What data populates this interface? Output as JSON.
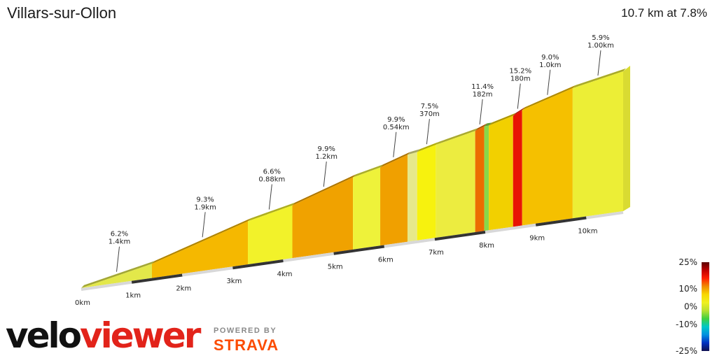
{
  "title": "Villars-sur-Ollon",
  "summary": "10.7 km at 7.8%",
  "chart_data": {
    "type": "area",
    "description": "3D gradient profile",
    "x_axis_labels": [
      "0km",
      "1km",
      "2km",
      "3km",
      "4km",
      "5km",
      "6km",
      "7km",
      "8km",
      "9km",
      "10km"
    ],
    "segments": [
      {
        "start_km": 0.0,
        "end_km": 1.4,
        "grade": 6.2,
        "color": "#e3e84a"
      },
      {
        "start_km": 1.4,
        "end_km": 3.3,
        "grade": 9.3,
        "color": "#f5b800"
      },
      {
        "start_km": 3.3,
        "end_km": 4.18,
        "grade": 6.6,
        "color": "#f2f22a"
      },
      {
        "start_km": 4.18,
        "end_km": 5.38,
        "grade": 9.9,
        "color": "#f0a200"
      },
      {
        "start_km": 5.38,
        "end_km": 5.92,
        "grade": 6.8,
        "color": "#eef23a"
      },
      {
        "start_km": 5.92,
        "end_km": 6.46,
        "grade": 9.9,
        "color": "#f0a000"
      },
      {
        "start_km": 6.46,
        "end_km": 6.65,
        "grade": 4.5,
        "color": "#e6e88a"
      },
      {
        "start_km": 6.65,
        "end_km": 7.02,
        "grade": 7.5,
        "color": "#f7f20e"
      },
      {
        "start_km": 7.02,
        "end_km": 7.8,
        "grade": 6.5,
        "color": "#ecec40"
      },
      {
        "start_km": 7.8,
        "end_km": 7.98,
        "grade": 11.4,
        "color": "#ec6d00"
      },
      {
        "start_km": 7.98,
        "end_km": 8.07,
        "grade": 0.5,
        "color": "#88d84a"
      },
      {
        "start_km": 8.07,
        "end_km": 8.55,
        "grade": 8.0,
        "color": "#f2d000"
      },
      {
        "start_km": 8.55,
        "end_km": 8.73,
        "grade": 15.2,
        "color": "#e81404"
      },
      {
        "start_km": 8.73,
        "end_km": 9.73,
        "grade": 9.0,
        "color": "#f5c000"
      },
      {
        "start_km": 9.73,
        "end_km": 10.73,
        "grade": 5.9,
        "color": "#ecee36"
      }
    ],
    "annotations": [
      {
        "grade": "6.2%",
        "dist": "1.4km",
        "km": 0.7
      },
      {
        "grade": "9.3%",
        "dist": "1.9km",
        "km": 2.4
      },
      {
        "grade": "6.6%",
        "dist": "0.88km",
        "km": 3.72
      },
      {
        "grade": "9.9%",
        "dist": "1.2km",
        "km": 4.8
      },
      {
        "grade": "9.9%",
        "dist": "0.54km",
        "km": 6.18
      },
      {
        "grade": "7.5%",
        "dist": "370m",
        "km": 6.84
      },
      {
        "grade": "11.4%",
        "dist": "182m",
        "km": 7.89
      },
      {
        "grade": "15.2%",
        "dist": "180m",
        "km": 8.64
      },
      {
        "grade": "9.0%",
        "dist": "1.0km",
        "km": 9.23
      },
      {
        "grade": "5.9%",
        "dist": "1.00km",
        "km": 10.23
      }
    ],
    "legend": {
      "ticks": [
        "25%",
        "10%",
        "0%",
        "-10%",
        "-25%"
      ],
      "ticks_values": [
        25,
        10,
        0,
        -10,
        -25
      ],
      "colors": [
        "#5a0000",
        "#c00000",
        "#ff2000",
        "#f08c00",
        "#f8d800",
        "#f0f020",
        "#b8e030",
        "#40d040",
        "#00c8c8",
        "#0090e0",
        "#0030c0",
        "#101050"
      ]
    }
  },
  "branding": {
    "velo": "velo",
    "viewer": "viewer",
    "powered_by": "POWERED BY",
    "strava": "STRAVA"
  }
}
